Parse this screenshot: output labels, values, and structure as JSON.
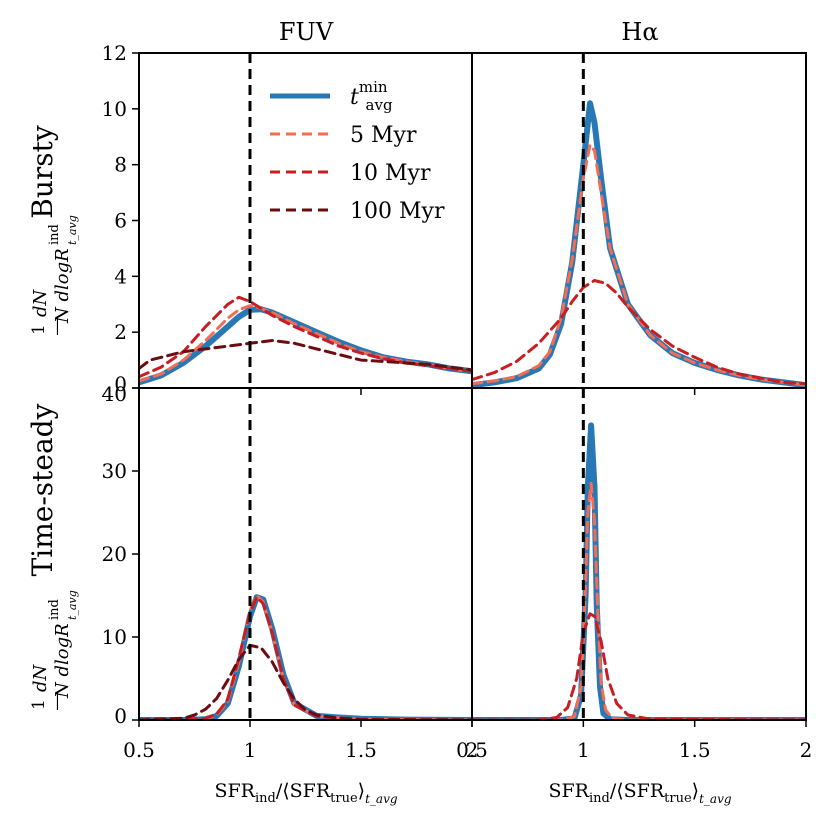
{
  "figure": {
    "columns": [
      "FUV",
      "Hα"
    ],
    "rows": [
      "Bursty",
      "Time-steady"
    ],
    "ylabel": {
      "prefix": "1",
      "frac_top": "dN",
      "frac_bottom": "N dlogR",
      "sup": "ind",
      "sub": "t_avg"
    },
    "xlabel": {
      "main": "SFR",
      "sub1": "ind",
      "mid": "/⟨SFR",
      "sub2": "true",
      "end": "⟩",
      "sub3": "t_avg"
    }
  },
  "legend": [
    {
      "label": "t_avg^min",
      "label_main": "t",
      "label_sub": "avg",
      "label_sup": "min",
      "color": "#2878b5",
      "style": "solid"
    },
    {
      "label": "5 Myr",
      "color": "#f46d52",
      "style": "dashed"
    },
    {
      "label": "10 Myr",
      "color": "#c71e24",
      "style": "dashed"
    },
    {
      "label": "100 Myr",
      "color": "#6a0d12",
      "style": "dashed"
    }
  ],
  "chart_data": [
    {
      "type": "line",
      "title": "FUV",
      "row_label": "Bursty",
      "xlim": [
        0.5,
        2
      ],
      "ylim": [
        0,
        12
      ],
      "xticks": [
        "0.5",
        "1",
        "1.5",
        "2"
      ],
      "yticks": [
        "0",
        "2",
        "4",
        "6",
        "8",
        "10",
        "12"
      ],
      "vline": 1.0,
      "series": [
        {
          "name": "t_avg^min",
          "color": "#2878b5",
          "x": [
            0.5,
            0.6,
            0.7,
            0.8,
            0.9,
            0.95,
            1.0,
            1.05,
            1.1,
            1.2,
            1.3,
            1.4,
            1.5,
            1.6,
            1.7,
            1.8,
            1.9,
            2.0
          ],
          "y": [
            0.2,
            0.45,
            0.9,
            1.5,
            2.2,
            2.55,
            2.8,
            2.82,
            2.7,
            2.35,
            2.0,
            1.65,
            1.35,
            1.1,
            0.95,
            0.85,
            0.7,
            0.6
          ]
        },
        {
          "name": "5 Myr",
          "color": "#f46d52",
          "x": [
            0.5,
            0.6,
            0.7,
            0.8,
            0.9,
            0.95,
            1.0,
            1.05,
            1.1,
            1.2,
            1.3,
            1.4,
            1.5,
            1.6,
            1.7,
            1.8,
            1.9,
            2.0
          ],
          "y": [
            0.25,
            0.5,
            1.0,
            1.7,
            2.5,
            2.8,
            2.95,
            2.85,
            2.7,
            2.3,
            1.95,
            1.6,
            1.3,
            1.1,
            0.95,
            0.85,
            0.7,
            0.6
          ]
        },
        {
          "name": "10 Myr",
          "color": "#c71e24",
          "x": [
            0.5,
            0.6,
            0.7,
            0.8,
            0.9,
            0.95,
            1.0,
            1.05,
            1.1,
            1.2,
            1.3,
            1.4,
            1.5,
            1.6,
            1.7,
            1.8,
            1.9,
            2.0
          ],
          "y": [
            0.4,
            0.75,
            1.3,
            2.2,
            3.0,
            3.25,
            3.1,
            2.85,
            2.6,
            2.2,
            1.85,
            1.5,
            1.25,
            1.05,
            0.9,
            0.8,
            0.7,
            0.6
          ]
        },
        {
          "name": "100 Myr",
          "color": "#6a0d12",
          "x": [
            0.5,
            0.55,
            0.6,
            0.7,
            0.8,
            0.9,
            1.0,
            1.1,
            1.2,
            1.3,
            1.4,
            1.5,
            1.6,
            1.7,
            1.8,
            1.9,
            2.0
          ],
          "y": [
            0.7,
            1.0,
            1.1,
            1.3,
            1.4,
            1.5,
            1.6,
            1.7,
            1.6,
            1.4,
            1.2,
            1.0,
            0.95,
            0.9,
            0.85,
            0.75,
            0.65
          ]
        }
      ]
    },
    {
      "type": "line",
      "title": "Hα",
      "row_label": "Bursty",
      "xlim": [
        0.5,
        2
      ],
      "ylim": [
        0,
        12
      ],
      "xticks": [
        "0.5",
        "1",
        "1.5",
        "2"
      ],
      "yticks": [],
      "vline": 1.0,
      "series": [
        {
          "name": "t_avg^min",
          "color": "#2878b5",
          "x": [
            0.5,
            0.6,
            0.7,
            0.8,
            0.85,
            0.9,
            0.95,
            1.0,
            1.03,
            1.05,
            1.08,
            1.12,
            1.2,
            1.3,
            1.4,
            1.5,
            1.6,
            1.7,
            1.8,
            1.9,
            2.0
          ],
          "y": [
            0.1,
            0.2,
            0.35,
            0.7,
            1.2,
            2.3,
            4.5,
            8.0,
            10.2,
            9.5,
            7.5,
            5.0,
            3.0,
            1.9,
            1.25,
            0.9,
            0.65,
            0.45,
            0.3,
            0.2,
            0.1
          ]
        },
        {
          "name": "5 Myr",
          "color": "#f46d52",
          "x": [
            0.5,
            0.6,
            0.7,
            0.8,
            0.85,
            0.9,
            0.95,
            1.0,
            1.03,
            1.05,
            1.08,
            1.12,
            1.2,
            1.3,
            1.4,
            1.5,
            1.6,
            1.7,
            1.8,
            1.9,
            2.0
          ],
          "y": [
            0.15,
            0.25,
            0.4,
            0.8,
            1.3,
            2.5,
            4.6,
            7.5,
            8.7,
            8.5,
            7.0,
            5.0,
            3.0,
            1.9,
            1.25,
            0.9,
            0.65,
            0.45,
            0.3,
            0.2,
            0.1
          ]
        },
        {
          "name": "10 Myr",
          "color": "#c71e24",
          "x": [
            0.5,
            0.6,
            0.7,
            0.8,
            0.9,
            0.95,
            1.0,
            1.05,
            1.1,
            1.15,
            1.2,
            1.3,
            1.4,
            1.5,
            1.6,
            1.7,
            1.8,
            1.9,
            2.0
          ],
          "y": [
            0.3,
            0.55,
            0.95,
            1.6,
            2.5,
            3.1,
            3.6,
            3.85,
            3.75,
            3.4,
            2.9,
            2.1,
            1.5,
            1.1,
            0.75,
            0.5,
            0.35,
            0.2,
            0.15
          ]
        }
      ]
    },
    {
      "type": "line",
      "title": "FUV",
      "row_label": "Time-steady",
      "xlim": [
        0.5,
        2
      ],
      "ylim": [
        0,
        40
      ],
      "xticks": [
        "0.5",
        "1",
        "1.5",
        "2"
      ],
      "yticks": [
        "0",
        "10",
        "20",
        "30",
        "40"
      ],
      "vline": 1.0,
      "series": [
        {
          "name": "t_avg^min",
          "color": "#2878b5",
          "x": [
            0.5,
            0.7,
            0.8,
            0.85,
            0.9,
            0.95,
            1.0,
            1.03,
            1.06,
            1.1,
            1.15,
            1.2,
            1.3,
            1.4,
            1.5,
            1.7,
            2.0
          ],
          "y": [
            0,
            0,
            0.1,
            0.5,
            2.0,
            6.5,
            12.5,
            14.8,
            14.5,
            11.0,
            5.5,
            2.0,
            0.5,
            0.3,
            0.15,
            0.05,
            0
          ]
        },
        {
          "name": "5 Myr",
          "color": "#f46d52",
          "x": [
            0.5,
            0.7,
            0.8,
            0.85,
            0.9,
            0.95,
            1.0,
            1.03,
            1.06,
            1.1,
            1.15,
            1.2,
            1.3,
            1.4,
            1.5,
            1.7,
            2.0
          ],
          "y": [
            0,
            0,
            0.15,
            0.6,
            2.2,
            7.0,
            13.2,
            15.0,
            14.2,
            10.5,
            5.0,
            1.8,
            0.45,
            0.25,
            0.1,
            0.05,
            0
          ]
        },
        {
          "name": "10 Myr",
          "color": "#c71e24",
          "x": [
            0.5,
            0.7,
            0.8,
            0.85,
            0.9,
            0.95,
            1.0,
            1.03,
            1.06,
            1.1,
            1.15,
            1.2,
            1.3,
            1.4,
            1.5,
            1.7,
            2.0
          ],
          "y": [
            0,
            0,
            0.2,
            0.7,
            2.5,
            7.5,
            13.0,
            14.8,
            14.0,
            10.5,
            5.0,
            1.8,
            0.45,
            0.25,
            0.1,
            0.05,
            0
          ]
        },
        {
          "name": "100 Myr",
          "color": "#6a0d12",
          "x": [
            0.5,
            0.7,
            0.75,
            0.8,
            0.85,
            0.9,
            0.95,
            1.0,
            1.05,
            1.1,
            1.15,
            1.2,
            1.25,
            1.3,
            1.4,
            1.5,
            2.0
          ],
          "y": [
            0,
            0.2,
            0.6,
            1.3,
            2.6,
            4.8,
            7.3,
            9.0,
            8.7,
            7.0,
            4.5,
            2.5,
            1.2,
            0.6,
            0.2,
            0.05,
            0
          ]
        }
      ]
    },
    {
      "type": "line",
      "title": "Hα",
      "row_label": "Time-steady",
      "xlim": [
        0.5,
        2
      ],
      "ylim": [
        0,
        40
      ],
      "xticks": [
        "0.5",
        "1",
        "1.5",
        "2"
      ],
      "yticks": [],
      "vline": 1.0,
      "series": [
        {
          "name": "t_avg^min",
          "color": "#2878b5",
          "x": [
            0.5,
            0.9,
            0.96,
            0.99,
            1.01,
            1.02,
            1.035,
            1.05,
            1.06,
            1.075,
            1.09,
            1.12,
            1.2,
            2.0
          ],
          "y": [
            0,
            0,
            0.2,
            3.0,
            15.0,
            28.0,
            35.5,
            28.0,
            14.0,
            4.0,
            0.8,
            0.1,
            0,
            0
          ]
        },
        {
          "name": "5 Myr",
          "color": "#f46d52",
          "x": [
            0.5,
            0.9,
            0.96,
            0.99,
            1.01,
            1.02,
            1.035,
            1.05,
            1.065,
            1.08,
            1.1,
            1.13,
            1.2,
            2.0
          ],
          "y": [
            0,
            0,
            0.4,
            4.0,
            16.0,
            25.0,
            28.5,
            24.0,
            13.0,
            4.5,
            1.2,
            0.2,
            0,
            0
          ]
        },
        {
          "name": "10 Myr",
          "color": "#c71e24",
          "x": [
            0.5,
            0.8,
            0.88,
            0.93,
            0.97,
            1.0,
            1.03,
            1.05,
            1.08,
            1.11,
            1.15,
            1.2,
            1.3,
            2.0
          ],
          "y": [
            0,
            0,
            0.3,
            1.5,
            5.0,
            10.5,
            12.8,
            12.5,
            9.5,
            5.0,
            2.0,
            0.6,
            0.1,
            0
          ]
        }
      ]
    }
  ]
}
